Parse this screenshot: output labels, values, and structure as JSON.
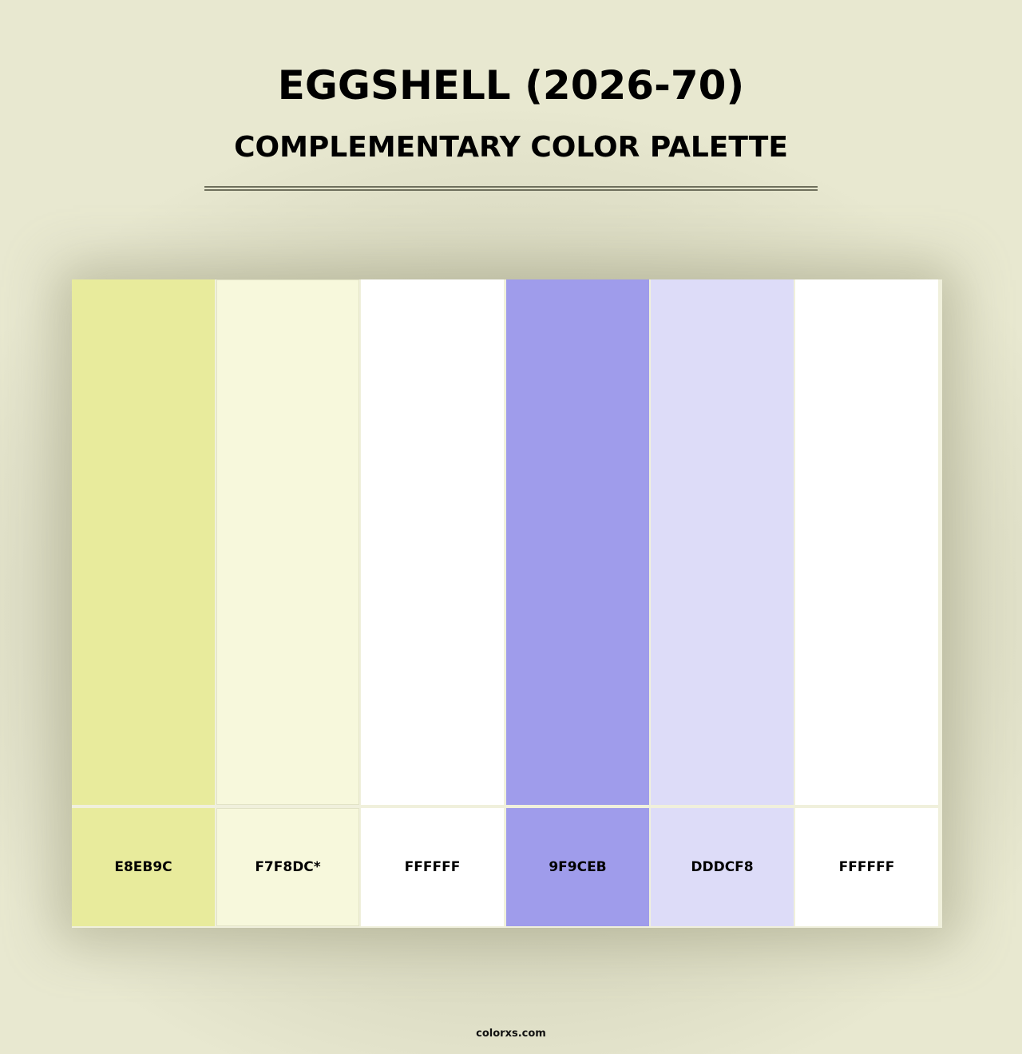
{
  "header": {
    "title": "EGGSHELL (2026-70)",
    "subtitle": "COMPLEMENTARY COLOR PALETTE"
  },
  "palette": [
    {
      "hex": "E8EB9C",
      "color": "#E8EB9C"
    },
    {
      "hex": "F7F8DC*",
      "color": "#F7F8DC"
    },
    {
      "hex": "FFFFFF",
      "color": "#FFFFFF"
    },
    {
      "hex": "9F9CEB",
      "color": "#9F9CEB"
    },
    {
      "hex": "DDDCF8",
      "color": "#DDDCF8"
    },
    {
      "hex": "FFFFFF",
      "color": "#FFFFFF"
    }
  ],
  "footer": {
    "site": "colorxs.com"
  }
}
